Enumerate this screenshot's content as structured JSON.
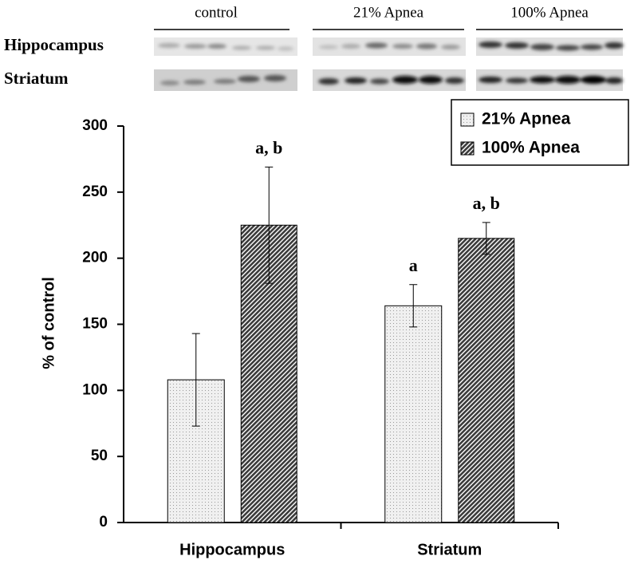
{
  "blot": {
    "groups": [
      "control",
      "21% Apnea",
      "100% Apnea"
    ],
    "rows": [
      "Hippocampus",
      "Striatum"
    ]
  },
  "chart_data": {
    "type": "bar",
    "y_label": "% of control",
    "categories": [
      "Hippocampus",
      "Striatum"
    ],
    "series": [
      {
        "name": "21% Apnea",
        "color": "#f0f0f0",
        "values": [
          108,
          164
        ],
        "errors": [
          35,
          16
        ],
        "value_annotations": [
          null,
          "a"
        ]
      },
      {
        "name": "100% Apnea",
        "color": "#3a3a3a",
        "values": [
          225,
          215
        ],
        "errors": [
          44,
          12
        ],
        "value_annotations": [
          "a, b",
          "a, b"
        ]
      }
    ],
    "ylim": [
      0,
      300
    ],
    "yticks": [
      0,
      50,
      100,
      150,
      200,
      250,
      300
    ],
    "legend": "upper right"
  }
}
